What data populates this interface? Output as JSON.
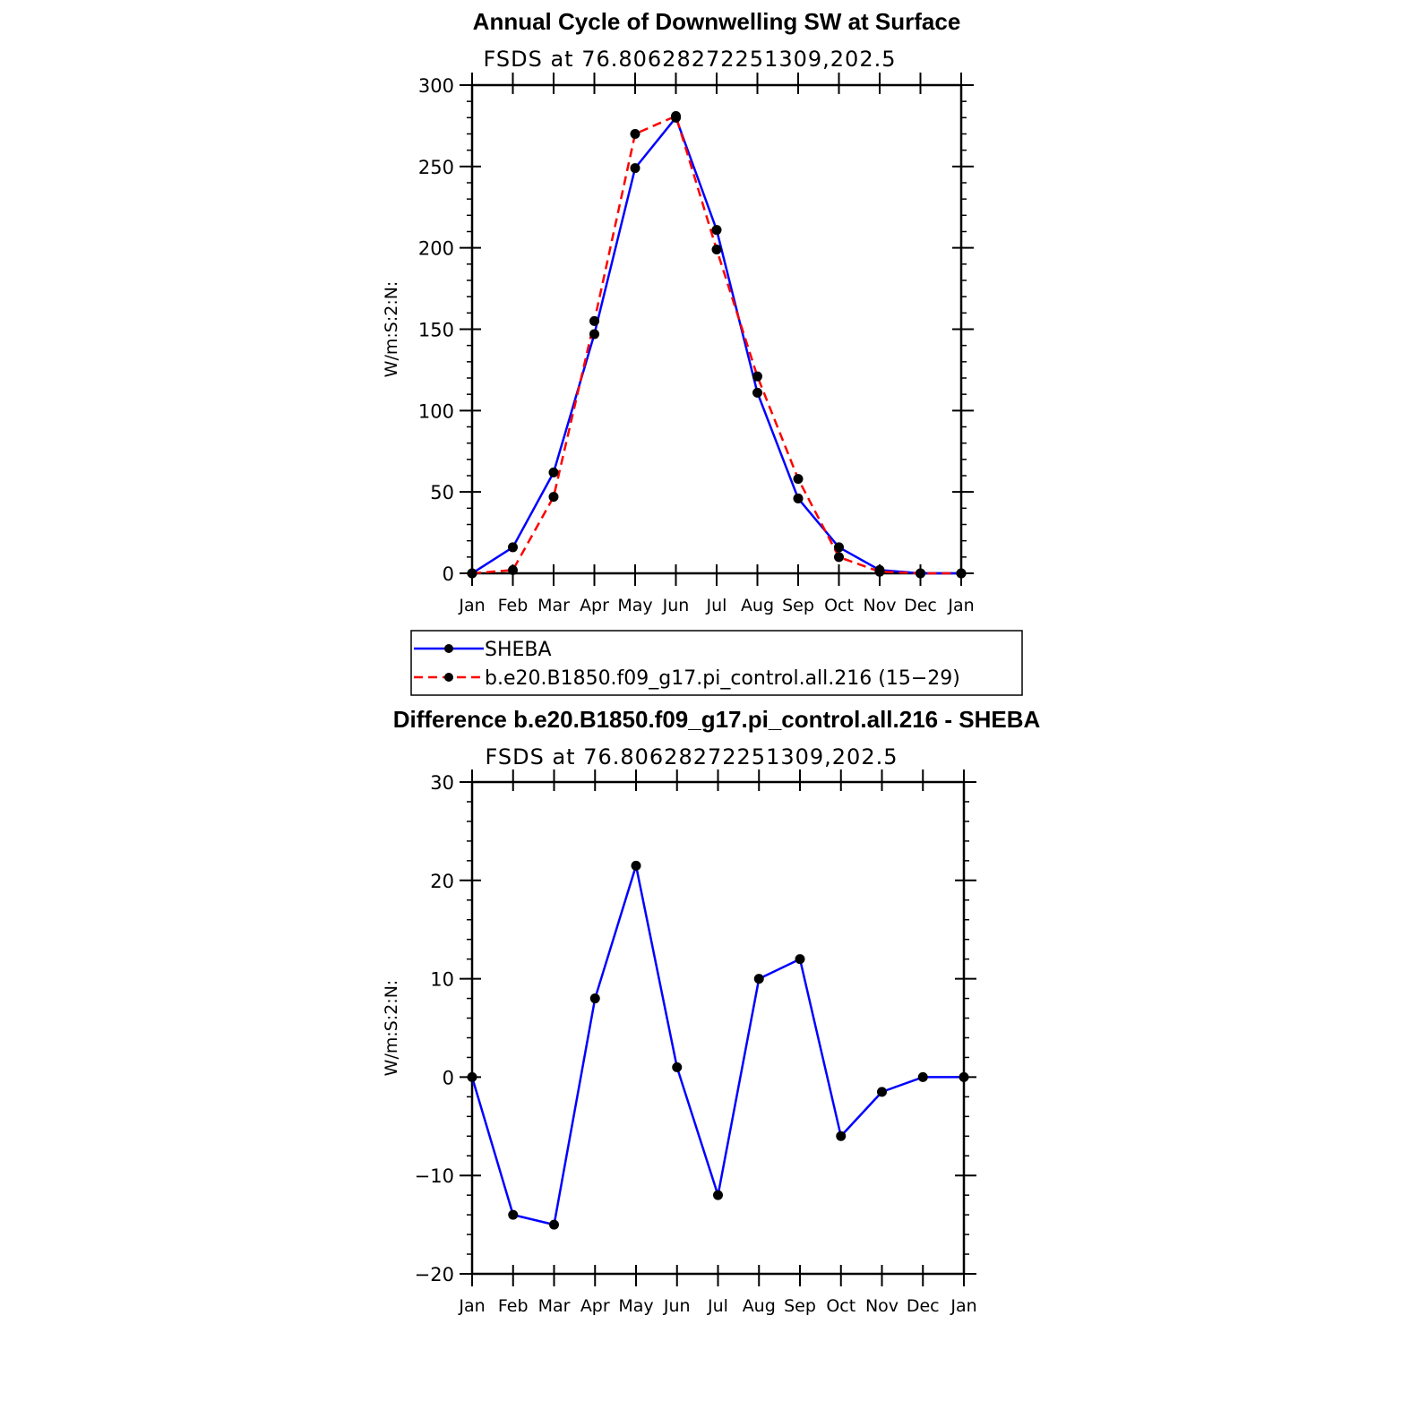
{
  "colors": {
    "sheba": "#0000ff",
    "model": "#ff0000",
    "marker": "#000000"
  },
  "chart_data": [
    {
      "type": "line",
      "title": "Annual Cycle of Downwelling SW at Surface",
      "subtitle": "FSDS at 76.80628272251309,202.5",
      "ylabel": "W/m:S:2:N:",
      "xlabel": "",
      "categories": [
        "Jan",
        "Feb",
        "Mar",
        "Apr",
        "May",
        "Jun",
        "Jul",
        "Aug",
        "Sep",
        "Oct",
        "Nov",
        "Dec",
        "Jan"
      ],
      "ylim": [
        0,
        300
      ],
      "yticks": [
        0,
        50,
        100,
        150,
        200,
        250,
        300
      ],
      "yminor": 10,
      "series": [
        {
          "name": "SHEBA",
          "style": "solid",
          "color": "#0000ff",
          "values": [
            0,
            16,
            62,
            147,
            249,
            280,
            211,
            111,
            46,
            16,
            2,
            0,
            0
          ]
        },
        {
          "name": "b.e20.B1850.f09_g17.pi_control.all.216 (15−29)",
          "style": "dashed",
          "color": "#ff0000",
          "values": [
            0,
            2,
            47,
            155,
            270,
            281,
            199,
            121,
            58,
            10,
            1,
            0,
            0
          ]
        }
      ]
    },
    {
      "type": "line",
      "title": "Difference b.e20.B1850.f09_g17.pi_control.all.216 - SHEBA",
      "subtitle": "FSDS at 76.80628272251309,202.5",
      "ylabel": "W/m:S:2:N:",
      "xlabel": "",
      "categories": [
        "Jan",
        "Feb",
        "Mar",
        "Apr",
        "May",
        "Jun",
        "Jul",
        "Aug",
        "Sep",
        "Oct",
        "Nov",
        "Dec",
        "Jan"
      ],
      "ylim": [
        -20,
        30
      ],
      "yticks": [
        -20,
        -10,
        0,
        10,
        20,
        30
      ],
      "ytick_labels": [
        "−20",
        "−10",
        "0",
        "10",
        "20",
        "30"
      ],
      "yminor": 2,
      "series": [
        {
          "style": "solid",
          "color": "#0000ff",
          "values": [
            0,
            -14,
            -15,
            8,
            21.5,
            1,
            -12,
            10,
            12,
            -6,
            -1.5,
            0,
            0
          ]
        }
      ]
    }
  ],
  "legend": {
    "entries": [
      {
        "label": "SHEBA",
        "style": "solid",
        "color": "#0000ff"
      },
      {
        "label": "b.e20.B1850.f09_g17.pi_control.all.216 (15−29)",
        "style": "dashed",
        "color": "#ff0000"
      }
    ]
  }
}
